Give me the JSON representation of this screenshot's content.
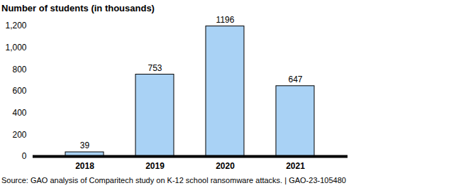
{
  "chart_data": {
    "type": "bar",
    "title": "Number of students (in thousands)",
    "caption": "Source: GAO analysis of Comparitech study on K-12 school ransomware attacks.  |  GAO-23-105480",
    "categories": [
      "2018",
      "2019",
      "2020",
      "2021"
    ],
    "values": [
      39,
      753,
      1196,
      647
    ],
    "color": "#a9d2f5",
    "ylim": [
      0,
      1200
    ],
    "yticks": [
      0,
      200,
      400,
      600,
      800,
      {
        "value": 1000,
        "label": "1,000"
      },
      {
        "value": 1200,
        "label": "1,200"
      }
    ],
    "grid": false,
    "data_labels": true
  }
}
